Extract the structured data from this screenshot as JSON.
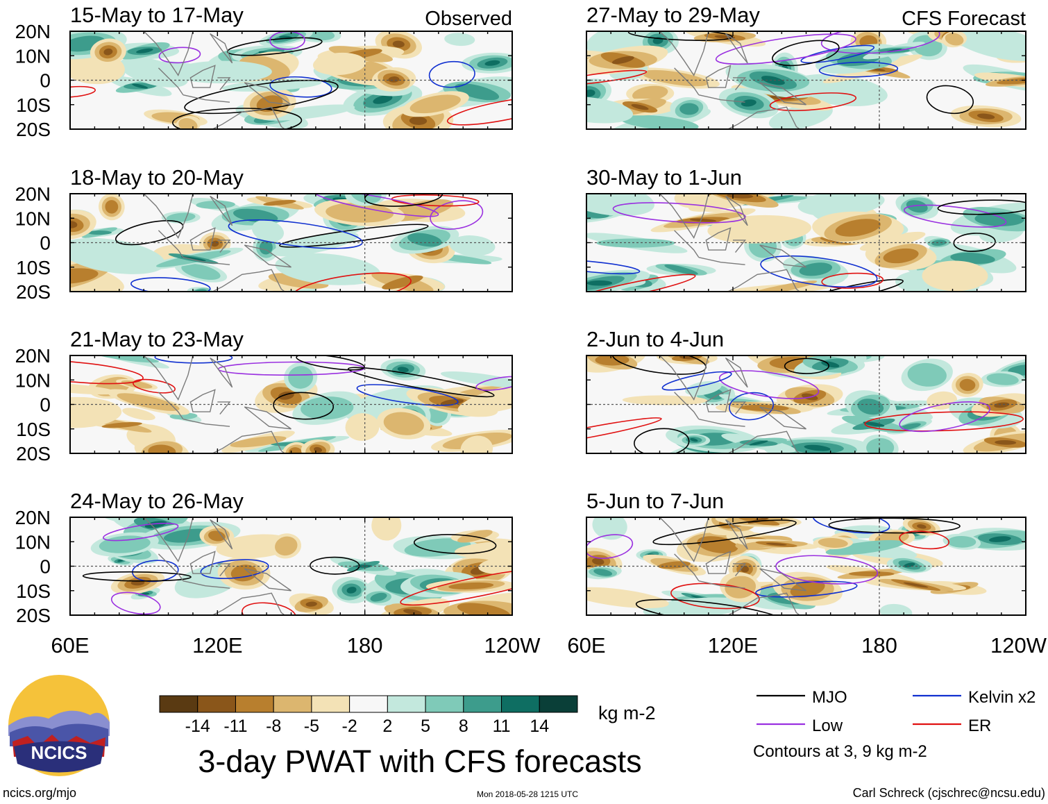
{
  "chart_data": {
    "type": "heatmap",
    "title": "3-day PWAT with CFS forecasts",
    "units": "kg m-2",
    "variable": "Precipitable water anomaly",
    "x_ticks": [
      "60E",
      "120E",
      "180",
      "120W"
    ],
    "y_ticks": [
      "20N",
      "10N",
      "0",
      "10S",
      "20S"
    ],
    "xlim": [
      60,
      240
    ],
    "ylim": [
      -20,
      20
    ],
    "columns": [
      {
        "label": "Observed",
        "panels": [
          "15-May to 17-May",
          "18-May to 20-May",
          "21-May to 23-May",
          "24-May to 26-May"
        ]
      },
      {
        "label": "CFS Forecast",
        "panels": [
          "27-May to 29-May",
          "30-May to 1-Jun",
          "2-Jun to 4-Jun",
          "5-Jun to 7-Jun"
        ]
      }
    ],
    "colorbar": {
      "ticks": [
        "-14",
        "-11",
        "-8",
        "-5",
        "-2",
        "2",
        "5",
        "8",
        "11",
        "14"
      ],
      "colors": [
        "#5a3a12",
        "#8a561a",
        "#b87f2e",
        "#dcb66f",
        "#f3e2b6",
        "#f7f7f7",
        "#c3e8dd",
        "#7fcab8",
        "#3d9c8c",
        "#0e6e62",
        "#0a3f38"
      ]
    },
    "legend": [
      {
        "label": "MJO",
        "color": "#000000"
      },
      {
        "label": "Kelvin x2",
        "color": "#1030d0"
      },
      {
        "label": "Low",
        "color": "#9a30e0"
      },
      {
        "label": "ER",
        "color": "#e01010"
      }
    ],
    "contour_note": "Contours at 3, 9 kg m-2"
  },
  "footer": {
    "left": "ncics.org/mjo",
    "center": "Mon 2018-05-28 1215 UTC",
    "right": "Carl Schreck (cjschrec@ncsu.edu)"
  },
  "logo": {
    "text": "NCICS"
  }
}
